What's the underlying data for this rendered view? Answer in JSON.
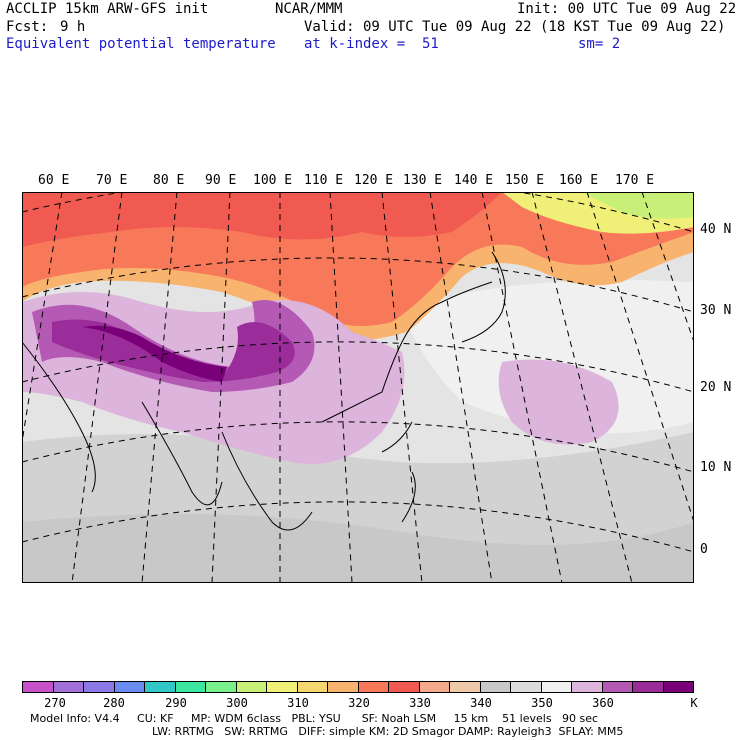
{
  "header": {
    "model": "ACCLIP 15km ARW-GFS init",
    "agency": "NCAR/MMM",
    "init": "Init: 00 UTC Tue 09 Aug 22",
    "fcst_label": "Fcst:",
    "fcst_value": "9 h",
    "valid": "Valid: 09 UTC Tue 09 Aug 22 (18 KST Tue 09 Aug 22)",
    "field": "Equivalent potential temperature",
    "level": "at k-index =  51",
    "smooth": "sm= 2"
  },
  "map": {
    "lon_labels": [
      "60 E",
      "70 E",
      "80 E",
      "90 E",
      "100 E",
      "110 E",
      "120 E",
      "130 E",
      "140 E",
      "150 E",
      "160 E",
      "170 E"
    ],
    "lat_labels": [
      "40 N",
      "30 N",
      "20 N",
      "10 N",
      "0"
    ]
  },
  "colorbar": {
    "colors": [
      "#c850c8",
      "#a070d8",
      "#8c78e6",
      "#6a8cf0",
      "#32c8c8",
      "#3ce6a0",
      "#78f08c",
      "#c8f078",
      "#f0f078",
      "#f6d66e",
      "#f8b46e",
      "#f8785a",
      "#f05a50",
      "#f6aa8c",
      "#f0c8aa",
      "#c8c8c8",
      "#dcdcdc",
      "#f0f0f0",
      "#dcb4dc",
      "#b45ab4",
      "#9b2d9b",
      "#7a007a"
    ],
    "ticks": [
      "270",
      "280",
      "290",
      "300",
      "310",
      "320",
      "330",
      "340",
      "350",
      "360"
    ],
    "unit": "K"
  },
  "footer": {
    "line1": "Model Info: V4.4     CU: KF     MP: WDM 6class   PBL: YSU      SF: Noah LSM     15 km    51 levels   90 sec",
    "line2": "LW: RRTMG   SW: RRTMG   DIFF: simple KM: 2D Smagor DAMP: Rayleigh3  SFLAY: MM5"
  }
}
